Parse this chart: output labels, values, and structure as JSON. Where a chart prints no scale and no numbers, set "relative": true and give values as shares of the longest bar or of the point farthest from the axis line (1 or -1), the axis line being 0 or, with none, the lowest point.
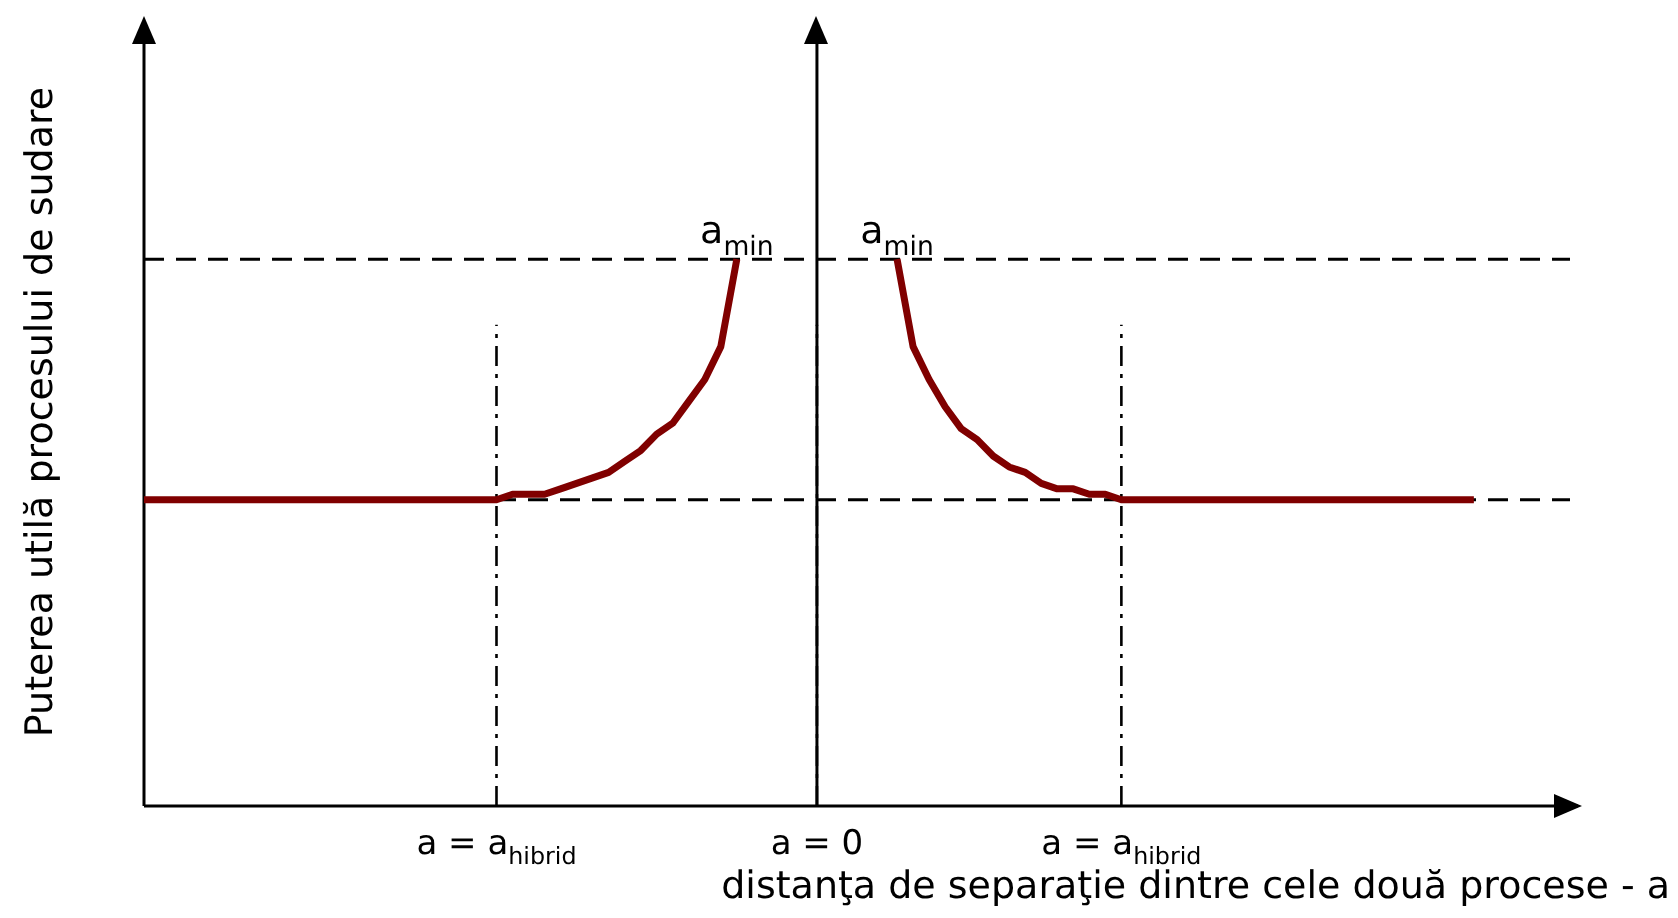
{
  "chart_data": {
    "type": "line",
    "relative": true,
    "xlabel": "distanţa de separaţie dintre cele două procese - a",
    "ylabel": "Puterea utilă procesului de sudare",
    "categories": [
      null,
      null,
      null,
      null,
      null,
      null,
      null,
      null,
      null,
      null,
      null,
      null,
      null,
      null,
      null,
      null,
      null,
      null,
      null,
      null,
      null,
      null,
      "a = a$_{hibrid}$",
      null,
      null,
      null,
      null,
      null,
      null,
      null,
      null,
      null,
      null,
      null,
      null,
      null,
      null,
      null,
      null,
      null,
      null,
      null,
      "a = 0",
      null,
      null,
      null,
      null,
      null,
      null,
      null,
      null,
      null,
      null,
      null,
      null,
      null,
      null,
      null,
      null,
      null,
      null,
      "a = a$_{hibrid}$",
      null,
      null,
      null,
      null,
      null,
      null,
      null,
      null,
      null,
      null,
      null,
      null,
      null,
      null,
      null,
      null,
      null,
      null,
      null,
      null,
      null,
      null,
      null,
      null,
      null,
      null,
      null,
      null
    ],
    "series": [
      {
        "color": "#800000",
        "values": [
          0.56,
          0.56,
          0.56,
          0.56,
          0.56,
          0.56,
          0.56,
          0.56,
          0.56,
          0.56,
          0.56,
          0.56,
          0.56,
          0.56,
          0.56,
          0.56,
          0.56,
          0.56,
          0.56,
          0.56,
          0.56,
          0.56,
          0.56,
          0.57,
          0.57,
          0.57,
          0.58,
          0.59,
          0.6,
          0.61,
          0.63,
          0.65,
          0.68,
          0.7,
          0.74,
          0.78,
          0.84,
          1,
          null,
          null,
          null,
          null,
          null,
          null,
          null,
          null,
          null,
          null,
          null,
          null,
          null,
          null,
          null,
          null,
          null,
          null,
          null,
          null,
          null,
          null,
          null,
          null,
          null,
          null,
          null,
          null,
          null,
          null,
          null,
          null,
          null,
          null,
          null,
          null,
          null,
          null,
          null,
          null,
          null,
          null,
          null,
          null,
          null,
          null,
          null,
          null,
          null,
          null,
          null,
          null
        ]
      },
      {
        "color": "#800000",
        "values": [
          null,
          null,
          null,
          null,
          null,
          null,
          null,
          null,
          null,
          null,
          null,
          null,
          null,
          null,
          null,
          null,
          null,
          null,
          null,
          null,
          null,
          null,
          null,
          null,
          null,
          null,
          null,
          null,
          null,
          null,
          null,
          null,
          null,
          null,
          null,
          null,
          null,
          null,
          null,
          null,
          null,
          null,
          null,
          null,
          null,
          null,
          null,
          1,
          0.84,
          0.78,
          0.73,
          0.69,
          0.67,
          0.64,
          0.62,
          0.61,
          0.59,
          0.58,
          0.58,
          0.57,
          0.57,
          0.56,
          0.56,
          0.56,
          0.56,
          0.56,
          0.56,
          0.56,
          0.56,
          0.56,
          0.56,
          0.56,
          0.56,
          0.56,
          0.56,
          0.56,
          0.56,
          0.56,
          0.56,
          0.56,
          0.56,
          0.56,
          0.56,
          0.56,
          null,
          null,
          null,
          null,
          null,
          null
        ]
      }
    ],
    "ref_lines": [
      {
        "axis": "y",
        "value": 1,
        "line_style": "dashed",
        "color": "#000000"
      },
      {
        "axis": "y",
        "value": 0.56,
        "line_style": "dashed",
        "color": "#000000"
      },
      {
        "axis": "x",
        "value": "a = 0",
        "line_style": "solid",
        "color": "#000000"
      }
    ],
    "grid": "x",
    "annotations": [
      "a$_{min}$",
      "a$_{min}$"
    ],
    "marker": "none",
    "line_style": "solid"
  }
}
